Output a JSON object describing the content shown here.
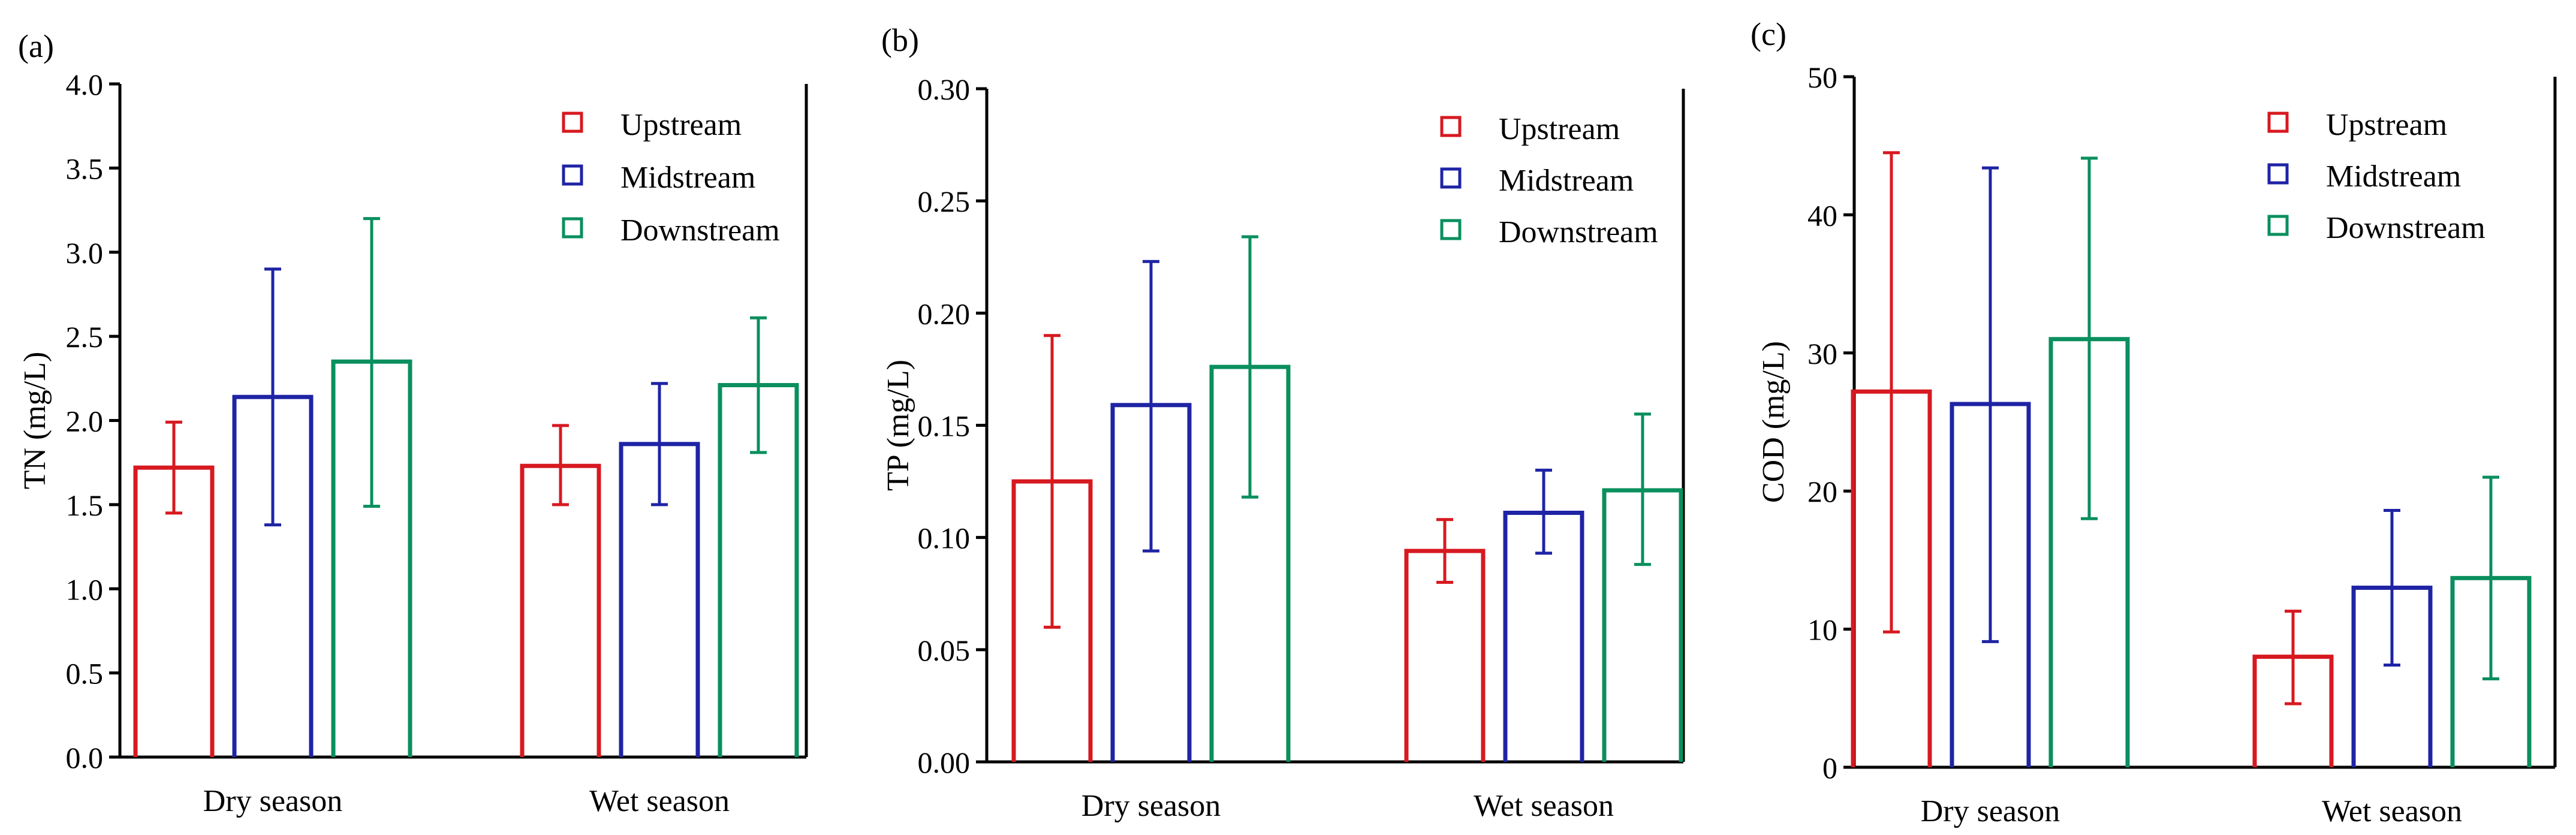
{
  "colors": {
    "Upstream": "#d71920",
    "Midstream": "#1f24a5",
    "Downstream": "#0a8f5e"
  },
  "chart_data": [
    {
      "panel_label": "(a)",
      "type": "bar",
      "categories": [
        "Dry season",
        "Wet season"
      ],
      "ylabel": "TN (mg/L)",
      "ylim": [
        0,
        4.0
      ],
      "yticks": [
        "0.0",
        "0.5",
        "1.0",
        "1.5",
        "2.0",
        "2.5",
        "3.0",
        "3.5",
        "4.0"
      ],
      "ytick_values": [
        0,
        0.5,
        1.0,
        1.5,
        2.0,
        2.5,
        3.0,
        3.5,
        4.0
      ],
      "legend": [
        "Upstream",
        "Midstream",
        "Downstream"
      ],
      "legend_position": "top-right",
      "series": [
        {
          "name": "Upstream",
          "values": [
            1.72,
            1.73
          ],
          "err_low": [
            1.45,
            1.5
          ],
          "err_high": [
            1.99,
            1.97
          ]
        },
        {
          "name": "Midstream",
          "values": [
            2.14,
            1.86
          ],
          "err_low": [
            1.38,
            1.5
          ],
          "err_high": [
            2.9,
            2.22
          ]
        },
        {
          "name": "Downstream",
          "values": [
            2.35,
            2.21
          ],
          "err_low": [
            1.49,
            1.81
          ],
          "err_high": [
            3.2,
            2.61
          ]
        }
      ]
    },
    {
      "panel_label": "(b)",
      "type": "bar",
      "categories": [
        "Dry season",
        "Wet season"
      ],
      "ylabel": "TP (mg/L)",
      "ylim": [
        0,
        0.3
      ],
      "yticks": [
        "0.00",
        "0.05",
        "0.10",
        "0.15",
        "0.20",
        "0.25",
        "0.30"
      ],
      "ytick_values": [
        0,
        0.05,
        0.1,
        0.15,
        0.2,
        0.25,
        0.3
      ],
      "legend": [
        "Upstream",
        "Midstream",
        "Downstream"
      ],
      "legend_position": "top-right",
      "series": [
        {
          "name": "Upstream",
          "values": [
            0.125,
            0.094
          ],
          "err_low": [
            0.06,
            0.08
          ],
          "err_high": [
            0.19,
            0.108
          ]
        },
        {
          "name": "Midstream",
          "values": [
            0.159,
            0.111
          ],
          "err_low": [
            0.094,
            0.093
          ],
          "err_high": [
            0.223,
            0.13
          ]
        },
        {
          "name": "Downstream",
          "values": [
            0.176,
            0.121
          ],
          "err_low": [
            0.118,
            0.088
          ],
          "err_high": [
            0.234,
            0.155
          ]
        }
      ]
    },
    {
      "panel_label": "(c)",
      "type": "bar",
      "categories": [
        "Dry season",
        "Wet season"
      ],
      "ylabel": "COD (mg/L)",
      "ylim": [
        0,
        50
      ],
      "yticks": [
        "0",
        "10",
        "20",
        "30",
        "40",
        "50"
      ],
      "ytick_values": [
        0,
        10,
        20,
        30,
        40,
        50
      ],
      "legend": [
        "Upstream",
        "Midstream",
        "Downstream"
      ],
      "legend_position": "top-right",
      "series": [
        {
          "name": "Upstream",
          "values": [
            27.2,
            8.0
          ],
          "err_low": [
            9.8,
            4.6
          ],
          "err_high": [
            44.5,
            11.3
          ]
        },
        {
          "name": "Midstream",
          "values": [
            26.3,
            13.0
          ],
          "err_low": [
            9.1,
            7.4
          ],
          "err_high": [
            43.4,
            18.6
          ]
        },
        {
          "name": "Downstream",
          "values": [
            31.0,
            13.7
          ],
          "err_low": [
            18.0,
            6.4
          ],
          "err_high": [
            44.1,
            21.0
          ]
        }
      ]
    }
  ]
}
